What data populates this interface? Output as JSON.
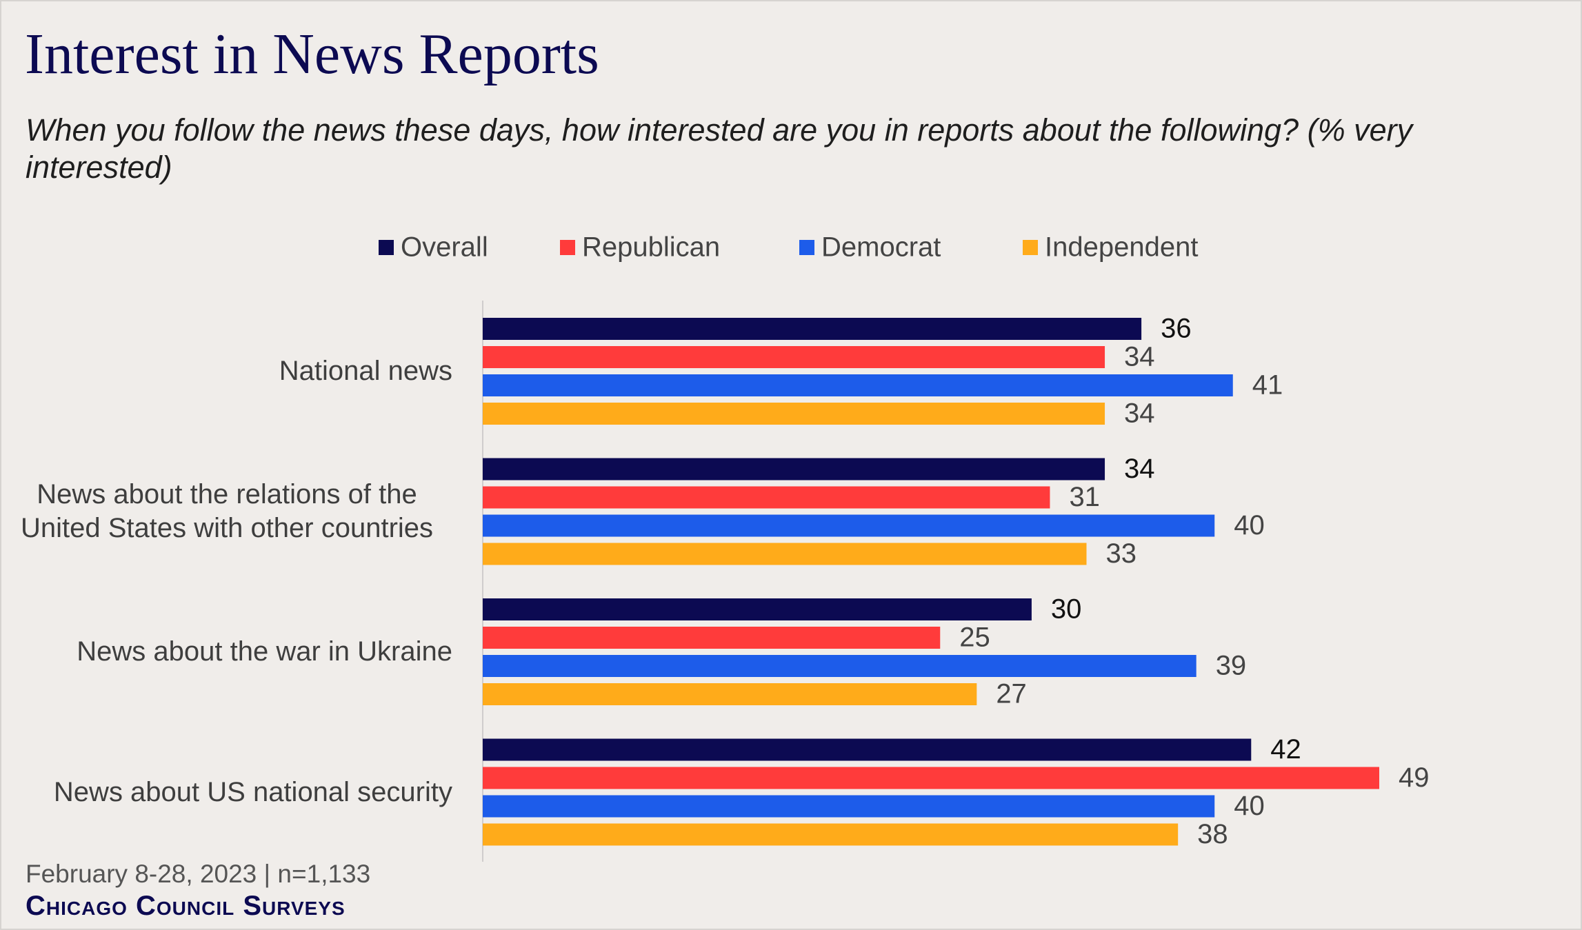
{
  "chart_data": {
    "type": "bar",
    "orientation": "horizontal",
    "title": "Interest in News Reports",
    "subtitle": "When you follow the news these days, how interested are you in reports about the following? (% very interested)",
    "categories": [
      "National news",
      "News about the relations of the United States with other countries",
      "News about the war in Ukraine",
      "News about US national security"
    ],
    "series": [
      {
        "name": "Overall",
        "color": "#0c0a52",
        "values": [
          36,
          34,
          30,
          42
        ]
      },
      {
        "name": "Republican",
        "color": "#ff3b3b",
        "values": [
          34,
          31,
          25,
          49
        ]
      },
      {
        "name": "Democrat",
        "color": "#1d5cea",
        "values": [
          41,
          40,
          39,
          40
        ]
      },
      {
        "name": "Independent",
        "color": "#ffab1a",
        "values": [
          34,
          33,
          27,
          38
        ]
      }
    ],
    "note": "February 8-28, 2023 | n=1,133",
    "source": "Chicago Council Surveys"
  }
}
